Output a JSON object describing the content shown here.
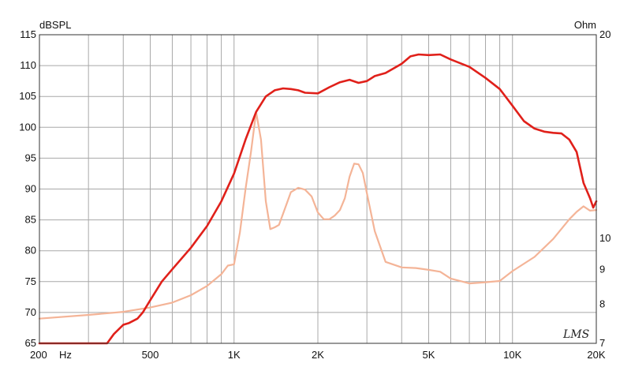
{
  "chart_data": {
    "type": "line",
    "title": "",
    "x_scale": "log",
    "xlim": [
      200,
      20000
    ],
    "ylim": [
      65,
      115
    ],
    "y2lim_ohm": [
      7,
      20
    ],
    "y_unit": "dBSPL",
    "y2_unit": "Ohm",
    "x_unit": "Hz",
    "grid": true,
    "x_ticks": [
      {
        "value": 200,
        "label": "200"
      },
      {
        "value": 500,
        "label": "500"
      },
      {
        "value": 1000,
        "label": "1K"
      },
      {
        "value": 2000,
        "label": "2K"
      },
      {
        "value": 5000,
        "label": "5K"
      },
      {
        "value": 10000,
        "label": "10K"
      },
      {
        "value": 20000,
        "label": "20K"
      }
    ],
    "y_ticks": [
      65,
      70,
      75,
      80,
      85,
      90,
      95,
      100,
      105,
      110,
      115
    ],
    "y2_ticks": [
      {
        "value": 20,
        "label": "20"
      },
      {
        "value": 10,
        "label": "10"
      },
      {
        "value": 9,
        "label": "9"
      },
      {
        "value": 8,
        "label": "8"
      },
      {
        "value": 7,
        "label": "7"
      }
    ],
    "series": [
      {
        "color": "#e0201a",
        "x": [
          200,
          250,
          300,
          350,
          370,
          400,
          420,
          450,
          470,
          500,
          550,
          600,
          700,
          800,
          900,
          1000,
          1100,
          1200,
          1300,
          1400,
          1500,
          1600,
          1700,
          1800,
          2000,
          2200,
          2400,
          2600,
          2800,
          3000,
          3200,
          3500,
          4000,
          4300,
          4600,
          5000,
          5500,
          6000,
          7000,
          8000,
          9000,
          10000,
          11000,
          12000,
          13000,
          14000,
          15000,
          16000,
          17000,
          18000,
          19000,
          19500,
          20000
        ],
        "y": [
          65,
          65,
          65,
          65,
          66.5,
          68,
          68.3,
          69,
          70,
          72,
          75,
          77,
          80.5,
          84,
          88,
          92.5,
          98,
          102.5,
          105,
          106,
          106.3,
          106.2,
          106,
          105.6,
          105.5,
          106.5,
          107.3,
          107.7,
          107.2,
          107.5,
          108.3,
          108.8,
          110.3,
          111.5,
          111.8,
          111.7,
          111.8,
          111,
          109.8,
          108,
          106.2,
          103.5,
          101,
          99.8,
          99.3,
          99.1,
          99.0,
          98,
          96,
          91,
          88.5,
          87,
          88
        ]
      },
      {
        "color": "#f4b497",
        "x": [
          200,
          300,
          400,
          500,
          600,
          700,
          800,
          900,
          950,
          1000,
          1050,
          1100,
          1150,
          1200,
          1250,
          1300,
          1350,
          1400,
          1450,
          1500,
          1600,
          1700,
          1800,
          1900,
          2000,
          2100,
          2200,
          2300,
          2400,
          2500,
          2600,
          2700,
          2800,
          2900,
          3000,
          3200,
          3500,
          4000,
          4500,
          5000,
          5500,
          6000,
          7000,
          8000,
          9000,
          10000,
          12000,
          14000,
          16000,
          17000,
          18000,
          19000,
          20000
        ],
        "y": [
          69.0,
          69.6,
          70.1,
          70.8,
          71.6,
          72.8,
          74.3,
          76.2,
          77.6,
          77.8,
          83,
          90,
          96,
          102.5,
          98,
          88,
          83.5,
          83.8,
          84.2,
          86,
          89.5,
          90.2,
          89.9,
          88.8,
          86.2,
          85.1,
          85.1,
          85.7,
          86.6,
          88.5,
          92,
          94.1,
          94,
          92.6,
          89.3,
          83.2,
          78.2,
          77.3,
          77.2,
          76.9,
          76.6,
          75.5,
          74.7,
          74.9,
          75.1,
          76.7,
          79.0,
          81.9,
          85.1,
          86.3,
          87.2,
          86.5,
          86.6
        ]
      }
    ]
  },
  "labels": {
    "y_unit": "dBSPL",
    "y2_unit": "Ohm",
    "x_unit": "Hz",
    "logo": "LMS"
  }
}
